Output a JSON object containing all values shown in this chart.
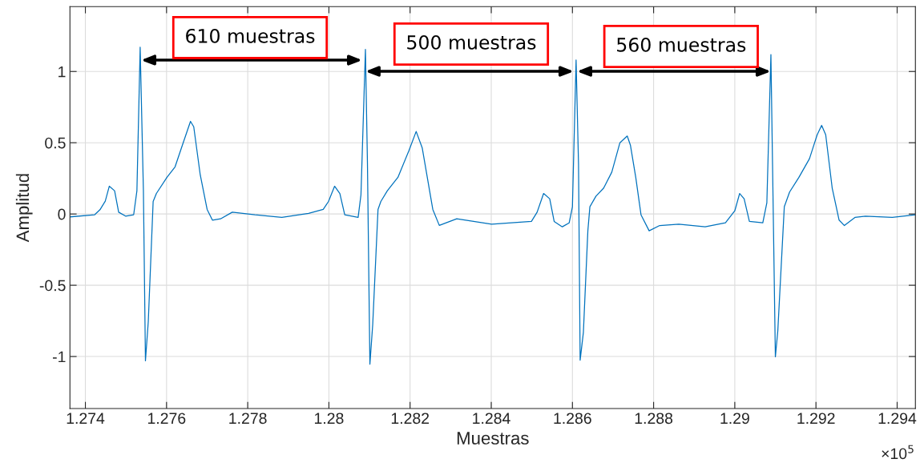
{
  "chart_data": {
    "type": "line",
    "xlabel": "Muestras",
    "ylabel": "Amplitud",
    "xlim": [
      1.27362,
      1.29445
    ],
    "ylim": [
      -1.365,
      1.455
    ],
    "xticks": [
      1.274,
      1.276,
      1.278,
      1.28,
      1.282,
      1.284,
      1.286,
      1.288,
      1.29,
      1.292,
      1.294
    ],
    "yticks": [
      -1,
      -0.5,
      0,
      0.5,
      1
    ],
    "grid": true,
    "marker": "none",
    "line_style": "solid",
    "series": [
      {
        "color": "#0072bd",
        "x": [
          1.27363,
          1.27423,
          1.27436,
          1.27449,
          1.27459,
          1.27472,
          1.27482,
          1.27499,
          1.27519,
          1.27527,
          1.27535,
          1.27543,
          1.27548,
          1.27555,
          1.27567,
          1.27575,
          1.27601,
          1.27621,
          1.27641,
          1.27659,
          1.27667,
          1.27683,
          1.277,
          1.27713,
          1.27733,
          1.27762,
          1.27818,
          1.27884,
          1.2795,
          1.27986,
          1.27999,
          1.28014,
          1.28027,
          1.28039,
          1.28072,
          1.28079,
          1.2809,
          1.28095,
          1.28101,
          1.28108,
          1.28121,
          1.28128,
          1.28144,
          1.2817,
          1.28197,
          1.28215,
          1.2823,
          1.28256,
          1.28272,
          1.28315,
          1.28401,
          1.28499,
          1.28513,
          1.28529,
          1.28544,
          1.28555,
          1.28575,
          1.28592,
          1.286,
          1.28609,
          1.28615,
          1.28619,
          1.28627,
          1.28638,
          1.28643,
          1.28658,
          1.28677,
          1.28697,
          1.28717,
          1.28735,
          1.28743,
          1.28756,
          1.28769,
          1.28789,
          1.28815,
          1.28862,
          1.28927,
          1.28977,
          1.29,
          1.29012,
          1.29023,
          1.29036,
          1.29069,
          1.29079,
          1.29089,
          1.29093,
          1.291,
          1.29106,
          1.29122,
          1.29135,
          1.29158,
          1.29184,
          1.29203,
          1.29214,
          1.29224,
          1.2924,
          1.29257,
          1.2927,
          1.29296,
          1.29322,
          1.29388,
          1.29444
        ],
        "values": [
          -0.02,
          -0.005,
          0.03,
          0.09,
          0.195,
          0.163,
          0.013,
          -0.015,
          -0.005,
          0.163,
          1.17,
          0.163,
          -1.03,
          -0.755,
          0.088,
          0.144,
          0.257,
          0.331,
          0.5,
          0.65,
          0.612,
          0.275,
          0.032,
          -0.043,
          -0.034,
          0.013,
          -0.006,
          -0.024,
          0.004,
          0.032,
          0.088,
          0.195,
          0.144,
          -0.006,
          -0.024,
          0.135,
          1.155,
          0.35,
          -1.054,
          -0.773,
          0.032,
          0.088,
          0.163,
          0.257,
          0.444,
          0.579,
          0.463,
          0.032,
          -0.08,
          -0.034,
          -0.071,
          -0.052,
          0.013,
          0.144,
          0.107,
          -0.052,
          -0.09,
          -0.062,
          0.051,
          1.08,
          0.35,
          -1.026,
          -0.83,
          -0.118,
          0.051,
          0.125,
          0.182,
          0.294,
          0.5,
          0.547,
          0.481,
          0.257,
          -0.006,
          -0.118,
          -0.081,
          -0.071,
          -0.09,
          -0.062,
          0.022,
          0.144,
          0.107,
          -0.052,
          -0.062,
          0.079,
          1.118,
          0.35,
          -1.002,
          -0.82,
          0.051,
          0.154,
          0.257,
          0.388,
          0.556,
          0.622,
          0.556,
          0.182,
          -0.043,
          -0.081,
          -0.024,
          -0.015,
          -0.024,
          -0.006
        ]
      }
    ],
    "annotations": [
      "610 muestras",
      "500 muestras",
      "560 muestras",
      "×10$^{5}$"
    ]
  }
}
